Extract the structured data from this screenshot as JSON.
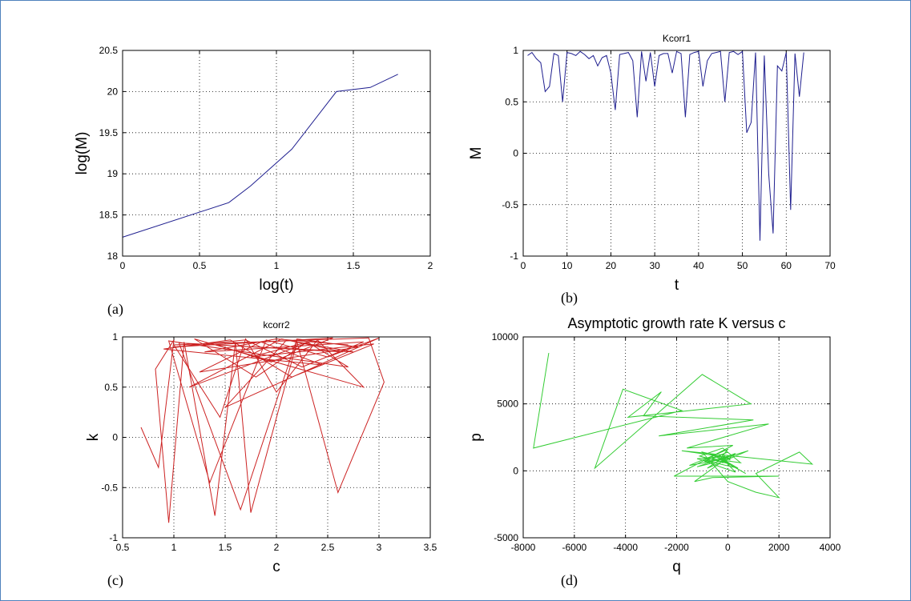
{
  "captions": [
    "(a)",
    "(b)",
    "(c)",
    "(d)"
  ],
  "chart_data": [
    {
      "type": "line",
      "title": "",
      "xlabel": "log(t)",
      "ylabel": "log(M)",
      "xlim": [
        0,
        2
      ],
      "ylim": [
        18,
        20.5
      ],
      "xticks": [
        "0",
        "0.5",
        "1",
        "1.5",
        "2"
      ],
      "yticks": [
        "18",
        "18.5",
        "19",
        "19.5",
        "20",
        "20.5"
      ],
      "grid": true,
      "color": "#1f1f8f",
      "x": [
        0,
        0.69,
        0.83,
        0.95,
        1.1,
        1.39,
        1.61,
        1.79
      ],
      "y": [
        18.23,
        18.65,
        18.85,
        19.05,
        19.3,
        20.0,
        20.05,
        20.21
      ]
    },
    {
      "type": "line",
      "title": "Kcorr1",
      "xlabel": "t",
      "ylabel": "M",
      "xlim": [
        0,
        70
      ],
      "ylim": [
        -1,
        1
      ],
      "xticks": [
        "0",
        "10",
        "20",
        "30",
        "40",
        "50",
        "60",
        "70"
      ],
      "yticks": [
        "-1",
        "-0.5",
        "0",
        "0.5",
        "1"
      ],
      "grid": true,
      "color": "#1f1f8f",
      "x": [
        1,
        2,
        3,
        4,
        5,
        6,
        7,
        8,
        9,
        10,
        11,
        12,
        13,
        14,
        15,
        16,
        17,
        18,
        19,
        20,
        21,
        22,
        23,
        24,
        25,
        26,
        27,
        28,
        29,
        30,
        31,
        32,
        33,
        34,
        35,
        36,
        37,
        38,
        39,
        40,
        41,
        42,
        43,
        44,
        45,
        46,
        47,
        48,
        49,
        50,
        51,
        52,
        53,
        54,
        55,
        56,
        57,
        58,
        59,
        60,
        61,
        62,
        63,
        64
      ],
      "y": [
        0.95,
        0.98,
        0.92,
        0.88,
        0.6,
        0.65,
        0.97,
        0.95,
        0.5,
        0.98,
        0.97,
        0.95,
        0.99,
        0.96,
        0.92,
        0.95,
        0.85,
        0.93,
        0.95,
        0.78,
        0.42,
        0.96,
        0.97,
        0.98,
        0.9,
        0.35,
        0.99,
        0.7,
        0.98,
        0.65,
        0.95,
        0.97,
        0.97,
        0.78,
        0.99,
        0.97,
        0.35,
        0.96,
        0.98,
        0.99,
        0.65,
        0.9,
        0.97,
        0.98,
        0.99,
        0.5,
        0.98,
        0.99,
        0.96,
        0.99,
        0.2,
        0.3,
        0.98,
        -0.85,
        0.95,
        -0.2,
        -0.78,
        0.85,
        0.8,
        0.98,
        -0.55,
        0.97,
        0.55,
        0.98
      ]
    },
    {
      "type": "line",
      "title": "kcorr2",
      "xlabel": "c",
      "ylabel": "k",
      "xlim": [
        0.5,
        3.5
      ],
      "ylim": [
        -1,
        1
      ],
      "xticks": [
        "0.5",
        "1",
        "1.5",
        "2",
        "2.5",
        "3",
        "3.5"
      ],
      "yticks": [
        "-1",
        "-0.5",
        "0",
        "0.5",
        "1"
      ],
      "grid": true,
      "color": "#cc2222",
      "x": [
        0.68,
        0.85,
        1.0,
        0.82,
        0.95,
        1.1,
        1.4,
        1.6,
        1.75,
        2.2,
        2.6,
        3.05,
        2.9,
        1.0,
        1.45,
        1.7,
        2.0,
        2.4,
        2.85,
        1.2,
        1.8,
        2.3,
        2.7,
        0.95,
        1.35,
        1.9,
        2.5,
        3.0,
        1.5,
        2.1,
        2.75,
        1.05,
        1.65,
        2.2,
        2.8,
        1.25,
        1.85,
        2.45,
        0.9,
        1.55,
        2.15,
        2.95,
        1.75,
        2.35,
        1.15,
        2.05,
        2.65,
        1.42,
        1.95,
        2.55,
        1.0,
        1.7,
        2.25,
        2.85,
        1.3,
        2.0,
        2.7
      ],
      "y": [
        0.1,
        -0.3,
        0.97,
        0.68,
        -0.85,
        0.95,
        -0.78,
        0.95,
        -0.75,
        0.95,
        -0.55,
        0.55,
        0.99,
        0.92,
        0.2,
        0.98,
        0.45,
        0.97,
        0.5,
        0.98,
        0.6,
        0.95,
        0.7,
        0.96,
        -0.45,
        0.97,
        0.8,
        0.99,
        0.3,
        0.97,
        0.85,
        0.94,
        -0.72,
        0.98,
        0.9,
        0.65,
        0.95,
        0.72,
        0.88,
        0.97,
        0.6,
        0.93,
        0.8,
        0.96,
        0.5,
        0.98,
        0.85,
        0.92,
        0.75,
        0.99,
        0.9,
        0.97,
        0.7,
        0.95,
        0.85,
        0.98,
        0.92
      ]
    },
    {
      "type": "line",
      "title": "Asymptotic growth rate K versus c",
      "xlabel": "q",
      "ylabel": "p",
      "xlim": [
        -8000,
        4000
      ],
      "ylim": [
        -5000,
        10000
      ],
      "xticks": [
        "-8000",
        "-6000",
        "-4000",
        "-2000",
        "0",
        "2000",
        "4000"
      ],
      "yticks": [
        "-5000",
        "0",
        "5000",
        "10000"
      ],
      "grid": true,
      "color": "#33cc33",
      "x": [
        -7000,
        -7600,
        -1800,
        -4100,
        -5200,
        -1000,
        900,
        -3900,
        -2600,
        -3300,
        1000,
        -2700,
        1600,
        -1600,
        200,
        -2100,
        2000,
        -600,
        -1300,
        0,
        -1800,
        3300,
        2800,
        1100,
        2000,
        1100,
        0,
        -1000,
        100,
        -1200,
        300,
        -200,
        -400,
        800,
        -800,
        -100,
        -1200,
        400,
        -500,
        -900,
        200,
        -1500,
        0,
        -300,
        700,
        -700,
        100,
        -1100,
        -200,
        500,
        -600,
        0,
        -900,
        300,
        -300,
        100
      ],
      "y": [
        8800,
        1700,
        4500,
        6100,
        200,
        7200,
        5000,
        4000,
        5900,
        4100,
        3800,
        2600,
        3500,
        1700,
        1900,
        -400,
        -400,
        -500,
        -800,
        1000,
        1500,
        500,
        1400,
        -200,
        -2000,
        -1600,
        -800,
        1400,
        900,
        300,
        1300,
        600,
        800,
        1500,
        200,
        1100,
        900,
        200,
        1200,
        700,
        1000,
        400,
        1600,
        900,
        -200,
        1300,
        500,
        1100,
        1700,
        600,
        900,
        1400,
        700,
        -100,
        1100,
        800
      ]
    }
  ]
}
